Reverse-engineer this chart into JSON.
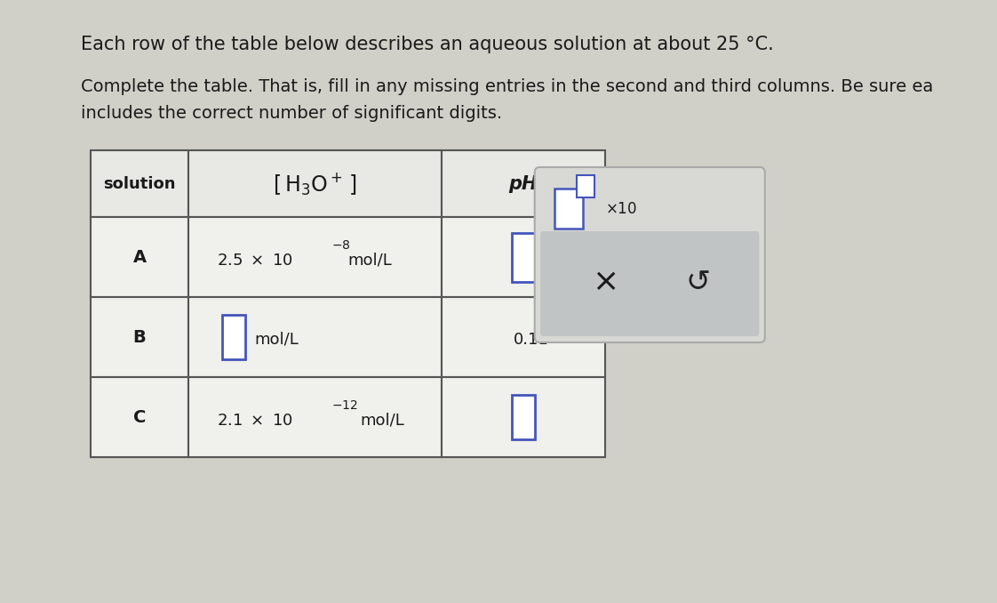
{
  "title1": "Each row of the table below describes an aqueous solution at about 25 °C.",
  "title2_line1": "Complete the table. That is, fill in any missing entries in the second and third columns. Be sure ea",
  "title2_line2": "includes the correct number of significant digits.",
  "fig_bg": "#d0cfc8",
  "table_bg_header": "#e8e8e4",
  "table_bg_data": "#f0f0ec",
  "table_border": "#555555",
  "input_border_color": "#4455bb",
  "overlay_outer_bg": "#d8d8d4",
  "overlay_outer_border": "#aaaaaa",
  "overlay_inner_bg": "#c0c4c4",
  "text_dark": "#1a1a1a",
  "text_mid": "#222222",
  "row_A_h3o": "2.5 × 10",
  "row_A_exp": "-8",
  "row_C_h3o": "2.1 × 10",
  "row_C_exp": "-12",
  "unit": "mol/L",
  "row_B_ph": "0.11",
  "col0_label": "solution",
  "col2_label": "pH"
}
